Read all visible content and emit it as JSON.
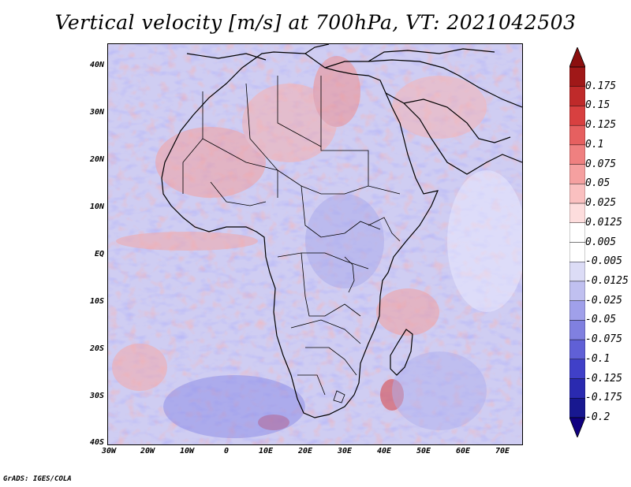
{
  "title": "Vertical velocity [m/s] at 700hPa, VT: 2021042503",
  "map": {
    "region": "Africa",
    "lat_labels": [
      "40N",
      "30N",
      "20N",
      "10N",
      "EQ",
      "10S",
      "20S",
      "30S",
      "40S"
    ],
    "lon_labels": [
      "30W",
      "20W",
      "10W",
      "0",
      "10E",
      "20E",
      "30E",
      "40E",
      "50E",
      "60E",
      "70E"
    ]
  },
  "colorbar": {
    "labels": [
      "0.175",
      "0.15",
      "0.125",
      "0.1",
      "0.075",
      "0.05",
      "0.025",
      "0.0125",
      "0.005",
      "-0.005",
      "-0.0125",
      "-0.025",
      "-0.05",
      "-0.075",
      "-0.1",
      "-0.125",
      "-0.175",
      "-0.2"
    ],
    "colors": [
      "#a01818",
      "#bf2a2a",
      "#d84040",
      "#e66060",
      "#ef8080",
      "#f5a0a0",
      "#fac0c0",
      "#fddddd",
      "#ffffff",
      "#ffffff",
      "#dcdcf6",
      "#c0c0f0",
      "#a0a0ea",
      "#8080e0",
      "#6060d6",
      "#4040c8",
      "#2a2ab0",
      "#181890"
    ],
    "top_arrow_color": "#8b0f0f",
    "bottom_arrow_color": "#100080"
  },
  "footer": "GrADS: IGES/COLA"
}
